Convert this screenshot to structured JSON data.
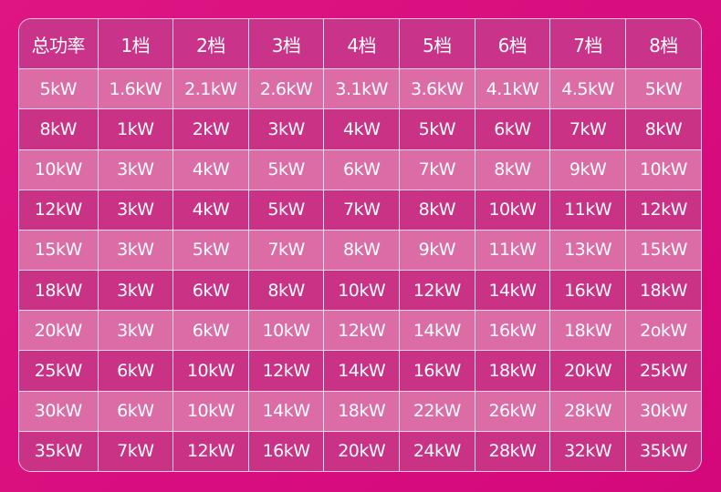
{
  "table": {
    "headers": [
      "总功率",
      "1档",
      "2档",
      "3档",
      "4档",
      "5档",
      "6档",
      "7档",
      "8档"
    ],
    "rows": [
      [
        "5kW",
        "1.6kW",
        "2.1kW",
        "2.6kW",
        "3.1kW",
        "3.6kW",
        "4.1kW",
        "4.5kW",
        "5kW"
      ],
      [
        "8kW",
        "1kW",
        "2kW",
        "3kW",
        "4kW",
        "5kW",
        "6kW",
        "7kW",
        "8kW"
      ],
      [
        "10kW",
        "3kW",
        "4kW",
        "5kW",
        "6kW",
        "7kW",
        "8kW",
        "9kW",
        "10kW"
      ],
      [
        "12kW",
        "3kW",
        "4kW",
        "5kW",
        "7kW",
        "8kW",
        "10kW",
        "11kW",
        "12kW"
      ],
      [
        "15kW",
        "3kW",
        "5kW",
        "7kW",
        "8kW",
        "9kW",
        "11kW",
        "13kW",
        "15kW"
      ],
      [
        "18kW",
        "3kW",
        "6kW",
        "8kW",
        "10kW",
        "12kW",
        "14kW",
        "16kW",
        "18kW"
      ],
      [
        "20kW",
        "3kW",
        "6kW",
        "10kW",
        "12kW",
        "14kW",
        "16kW",
        "18kW",
        "2okW"
      ],
      [
        "25kW",
        "6kW",
        "10kW",
        "12kW",
        "14kW",
        "16kW",
        "18kW",
        "20kW",
        "25kW"
      ],
      [
        "30kW",
        "6kW",
        "10kW",
        "14kW",
        "18kW",
        "22kW",
        "26kW",
        "28kW",
        "30kW"
      ],
      [
        "35kW",
        "7kW",
        "12kW",
        "16kW",
        "20kW",
        "24kW",
        "28kW",
        "32kW",
        "35kW"
      ]
    ]
  },
  "colors": {
    "background": "#d90f7c",
    "header": "#c9338a",
    "row_light": "#dc6ca6",
    "row_dark": "#c93285"
  }
}
